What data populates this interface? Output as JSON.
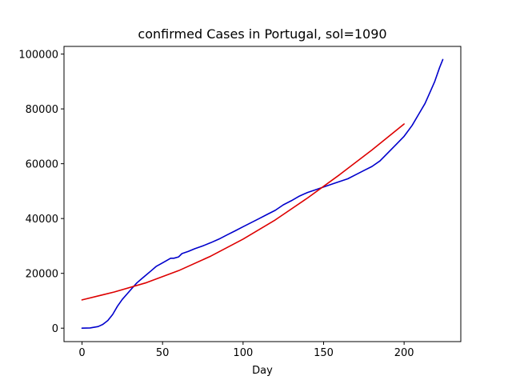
{
  "chart_data": {
    "type": "line",
    "title": "confirmed Cases in Portugal, sol=1090",
    "xlabel": "Day",
    "ylabel": "",
    "xlim": [
      -11.2,
      235.2
    ],
    "ylim": [
      -4900,
      102800
    ],
    "xticks": [
      0,
      50,
      100,
      150,
      200
    ],
    "xtick_labels": [
      "0",
      "50",
      "100",
      "150",
      "200"
    ],
    "yticks": [
      0,
      20000,
      40000,
      60000,
      80000,
      100000
    ],
    "ytick_labels": [
      "0",
      "20000",
      "40000",
      "60000",
      "80000",
      "100000"
    ],
    "grid": false,
    "series": [
      {
        "color": "#0000cc",
        "x": [
          0,
          5,
          10,
          13,
          16,
          19,
          22,
          25,
          28,
          31,
          34,
          37,
          40,
          43,
          46,
          49,
          52,
          55,
          57,
          60,
          62,
          66,
          70,
          75,
          80,
          85,
          90,
          95,
          100,
          105,
          110,
          115,
          120,
          125,
          130,
          135,
          140,
          145,
          150,
          155,
          160,
          165,
          170,
          175,
          180,
          185,
          190,
          195,
          200,
          205,
          210,
          213,
          216,
          219,
          222,
          224
        ],
        "y": [
          0,
          100,
          600,
          1400,
          2800,
          5000,
          8000,
          10500,
          12500,
          14500,
          16500,
          18000,
          19500,
          21000,
          22500,
          23500,
          24500,
          25500,
          25500,
          26000,
          27200,
          28000,
          29000,
          30000,
          31200,
          32500,
          34000,
          35500,
          37000,
          38500,
          40000,
          41500,
          43000,
          45000,
          46500,
          48200,
          49500,
          50500,
          51500,
          52500,
          53500,
          54500,
          56000,
          57500,
          59000,
          61000,
          64000,
          67000,
          70000,
          74000,
          79000,
          82000,
          86000,
          90000,
          95000,
          98000
        ]
      },
      {
        "color": "#dd0000",
        "x": [
          0,
          20,
          40,
          60,
          80,
          100,
          120,
          140,
          160,
          180,
          200
        ],
        "y": [
          10300,
          13200,
          16600,
          21000,
          26300,
          32500,
          39500,
          47500,
          56000,
          65000,
          74500
        ]
      }
    ]
  }
}
